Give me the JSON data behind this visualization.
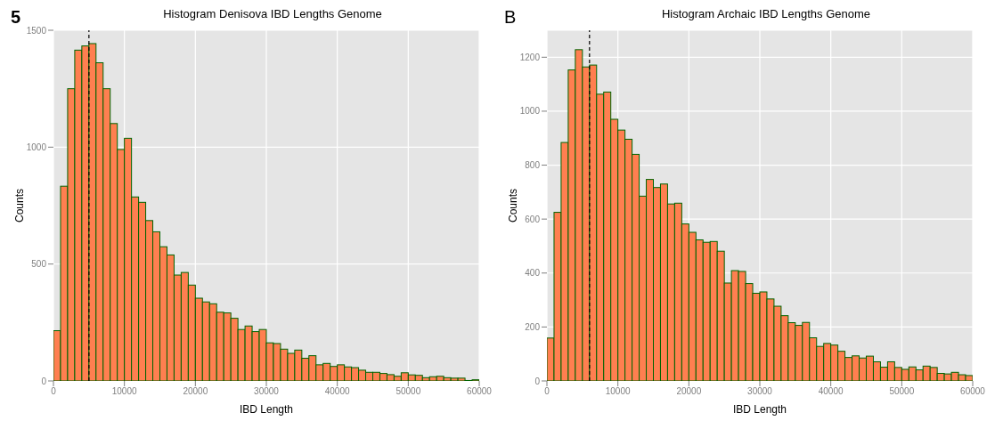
{
  "chart_data": [
    {
      "type": "histogram",
      "title": "Histogram Denisova IBD Lengths Genome",
      "xlabel": "IBD Length",
      "ylabel": "Counts",
      "annotations": [
        "5"
      ],
      "color": "#ff7f50",
      "bins": [
        0,
        1000,
        2000,
        3000,
        4000,
        5000,
        6000,
        7000,
        8000,
        9000,
        10000,
        11000,
        12000,
        13000,
        14000,
        15000,
        16000,
        17000,
        18000,
        19000,
        20000,
        21000,
        22000,
        23000,
        24000,
        25000,
        26000,
        27000,
        28000,
        29000,
        30000,
        31000,
        32000,
        33000,
        34000,
        35000,
        36000,
        37000,
        38000,
        39000,
        40000,
        41000,
        42000,
        43000,
        44000,
        45000,
        46000,
        47000,
        48000,
        49000,
        50000,
        51000,
        52000,
        53000,
        54000,
        55000,
        56000,
        57000,
        58000,
        59000,
        60000
      ],
      "values": [
        215,
        833,
        1250,
        1415,
        1433,
        1443,
        1361,
        1250,
        1101,
        990,
        1038,
        787,
        764,
        686,
        638,
        574,
        539,
        453,
        464,
        410,
        354,
        338,
        330,
        294,
        291,
        268,
        220,
        235,
        211,
        220,
        163,
        160,
        136,
        118,
        132,
        97,
        108,
        69,
        75,
        62,
        69,
        60,
        57,
        46,
        37,
        37,
        32,
        27,
        20,
        35,
        26,
        24,
        14,
        18,
        20,
        14,
        12,
        12,
        2,
        5
      ],
      "xlim": [
        0,
        60000
      ],
      "xticks": [
        0,
        10000,
        20000,
        30000,
        40000,
        50000,
        60000
      ],
      "ylim": [
        0,
        1500
      ],
      "yticks": [
        0,
        500,
        1000,
        1500
      ],
      "grid": true,
      "ref_lines": [
        {
          "axis": "x",
          "value": 5000,
          "line_style": "dashed",
          "color": "#000000"
        }
      ]
    },
    {
      "type": "histogram",
      "title": "Histogram Archaic IBD Lengths Genome",
      "xlabel": "IBD Length",
      "ylabel": "Counts",
      "annotations": [
        "B"
      ],
      "color": "#ff7f50",
      "bins": [
        0,
        1000,
        2000,
        3000,
        4000,
        5000,
        6000,
        7000,
        8000,
        9000,
        10000,
        11000,
        12000,
        13000,
        14000,
        15000,
        16000,
        17000,
        18000,
        19000,
        20000,
        21000,
        22000,
        23000,
        24000,
        25000,
        26000,
        27000,
        28000,
        29000,
        30000,
        31000,
        32000,
        33000,
        34000,
        35000,
        36000,
        37000,
        38000,
        39000,
        40000,
        41000,
        42000,
        43000,
        44000,
        45000,
        46000,
        47000,
        48000,
        49000,
        50000,
        51000,
        52000,
        53000,
        54000,
        55000,
        56000,
        57000,
        58000,
        59000,
        60000
      ],
      "values": [
        159,
        625,
        884,
        1153,
        1228,
        1164,
        1171,
        1063,
        1071,
        970,
        930,
        896,
        840,
        685,
        747,
        717,
        730,
        656,
        659,
        582,
        551,
        523,
        514,
        517,
        481,
        363,
        409,
        406,
        361,
        325,
        330,
        304,
        277,
        242,
        216,
        206,
        217,
        160,
        128,
        139,
        133,
        110,
        87,
        93,
        85,
        92,
        71,
        51,
        71,
        50,
        43,
        52,
        41,
        55,
        50,
        28,
        26,
        32,
        23,
        20
      ],
      "xlim": [
        0,
        60000
      ],
      "xticks": [
        0,
        10000,
        20000,
        30000,
        40000,
        50000,
        60000
      ],
      "ylim": [
        0,
        1300
      ],
      "yticks": [
        0,
        200,
        400,
        600,
        800,
        1000,
        1200
      ],
      "grid": true,
      "ref_lines": [
        {
          "axis": "x",
          "value": 6000,
          "line_style": "dashed",
          "color": "#000000"
        }
      ]
    }
  ]
}
